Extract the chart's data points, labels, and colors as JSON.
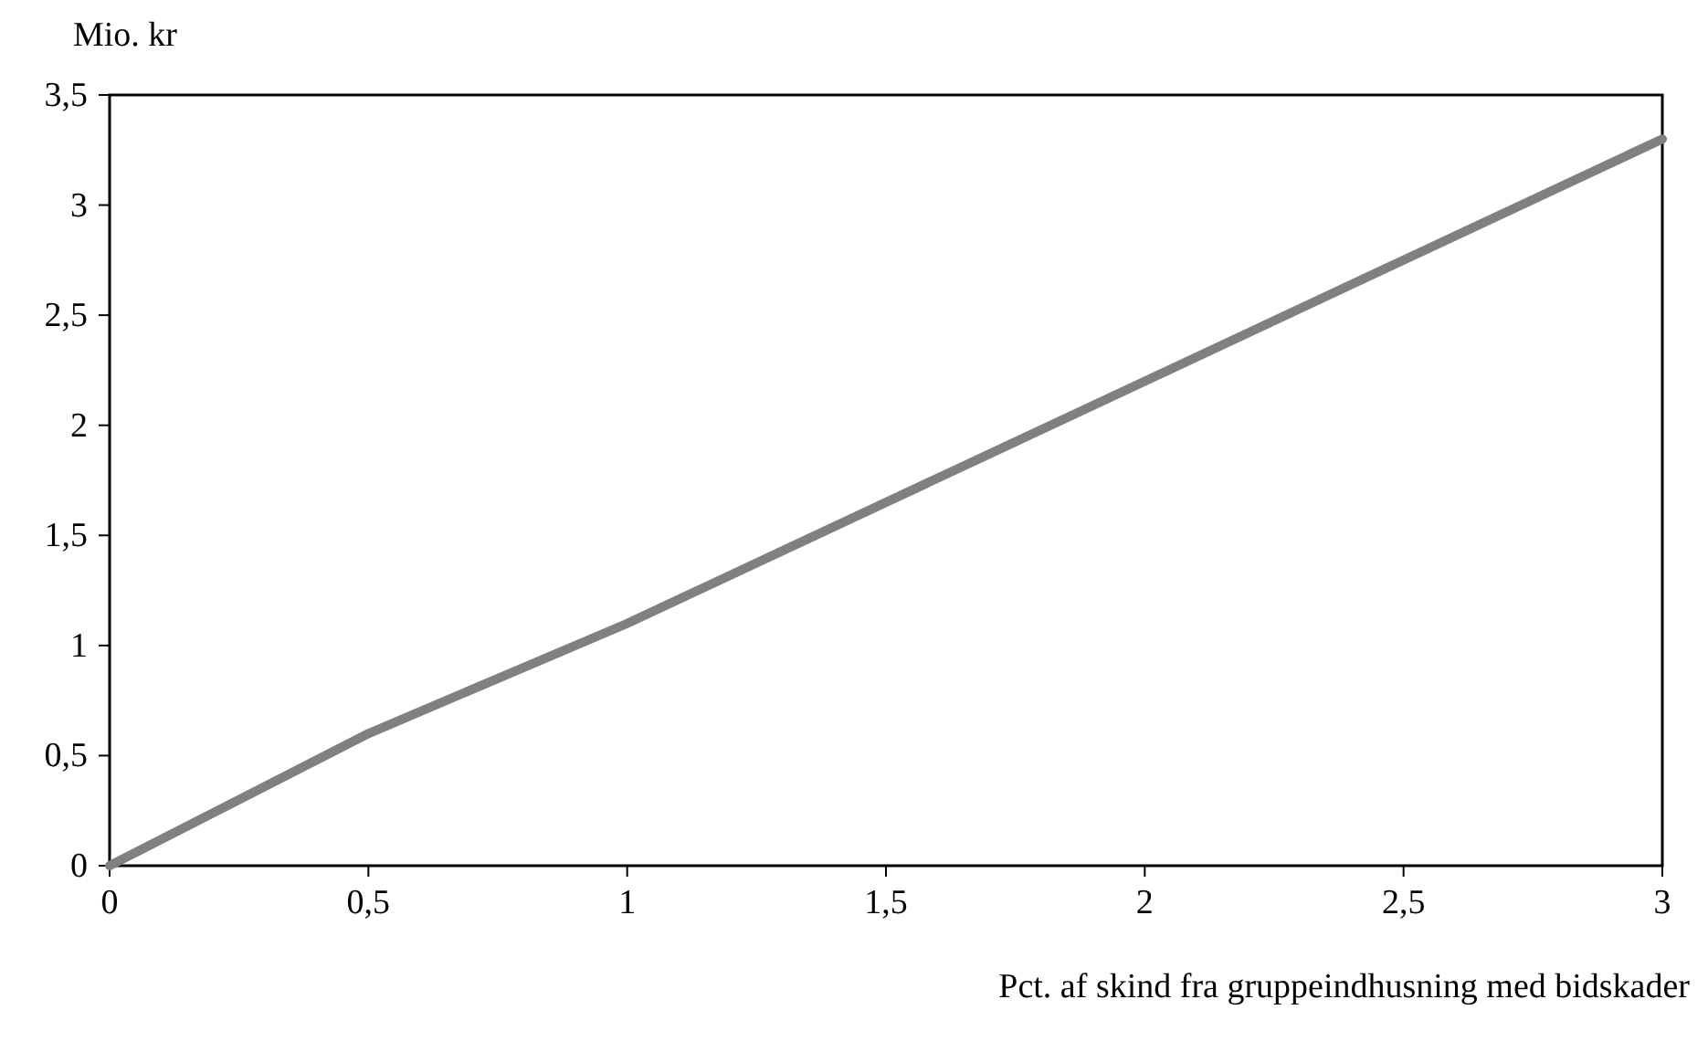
{
  "chart_data": {
    "type": "line",
    "ylabel": "Mio. kr",
    "xlabel": "Pct. af skind fra gruppeindhusning med bidskader",
    "x": [
      0,
      0.5,
      1,
      2,
      3
    ],
    "series": [
      {
        "color": "#808080",
        "values": [
          0,
          0.6,
          1.1,
          2.2,
          3.3
        ]
      }
    ],
    "xlim": [
      0,
      3
    ],
    "xticks": [
      0,
      {
        "value": 0.5,
        "label": "0,5"
      },
      1,
      {
        "value": 1.5,
        "label": "1,5"
      },
      2,
      {
        "value": 2.5,
        "label": "2,5"
      },
      3
    ],
    "ylim": [
      0,
      3.5
    ],
    "yticks": [
      0,
      {
        "value": 0.5,
        "label": "0,5"
      },
      1,
      {
        "value": 1.5,
        "label": "1,5"
      },
      2,
      {
        "value": 2.5,
        "label": "2,5"
      },
      3,
      {
        "value": 3.5,
        "label": "3,5"
      }
    ],
    "grid": false,
    "marker": "none",
    "line_style": "solid"
  }
}
